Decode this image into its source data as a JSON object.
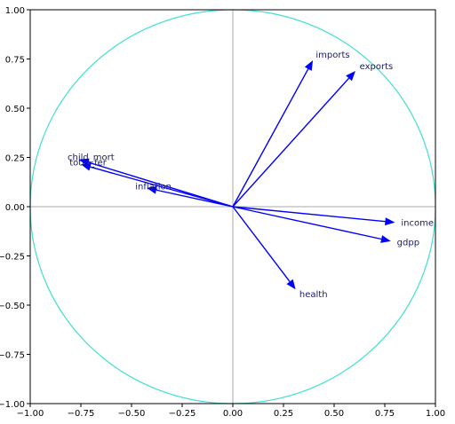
{
  "chart_data": {
    "type": "arrow",
    "arrows": [
      {
        "name": "imports",
        "x": 0.395,
        "y": 0.743
      },
      {
        "name": "exports",
        "x": 0.605,
        "y": 0.689
      },
      {
        "name": "income",
        "x": 0.8,
        "y": -0.08
      },
      {
        "name": "gdpp",
        "x": 0.78,
        "y": -0.175
      },
      {
        "name": "health",
        "x": 0.31,
        "y": -0.42
      },
      {
        "name": "child_mort",
        "x": -0.76,
        "y": 0.24
      },
      {
        "name": "total_fer",
        "x": -0.75,
        "y": 0.215
      },
      {
        "name": "inflation",
        "x": -0.425,
        "y": 0.095
      }
    ],
    "color": "#0000ff",
    "circle": {
      "radius": 1,
      "color": "#40e0d0"
    },
    "xlim": [
      -1,
      1
    ],
    "ylim": [
      -1,
      1
    ],
    "xticks": [
      {
        "value": -1,
        "label": "−1.00"
      },
      {
        "value": -0.75,
        "label": "−0.75"
      },
      {
        "value": -0.5,
        "label": "−0.50"
      },
      {
        "value": -0.25,
        "label": "−0.25"
      },
      {
        "value": 0,
        "label": "0.00"
      },
      {
        "value": 0.25,
        "label": "0.25"
      },
      {
        "value": 0.5,
        "label": "0.50"
      },
      {
        "value": 0.75,
        "label": "0.75"
      },
      {
        "value": 1,
        "label": "1.00"
      }
    ],
    "yticks": [
      {
        "value": -1,
        "label": "−1.00"
      },
      {
        "value": -0.75,
        "label": "−0.75"
      },
      {
        "value": -0.5,
        "label": "−0.50"
      },
      {
        "value": -0.25,
        "label": "−0.25"
      },
      {
        "value": 0,
        "label": "0.00"
      },
      {
        "value": 0.25,
        "label": "0.25"
      },
      {
        "value": 0.5,
        "label": "0.50"
      },
      {
        "value": 0.75,
        "label": "0.75"
      },
      {
        "value": 1,
        "label": "1.00"
      }
    ]
  }
}
